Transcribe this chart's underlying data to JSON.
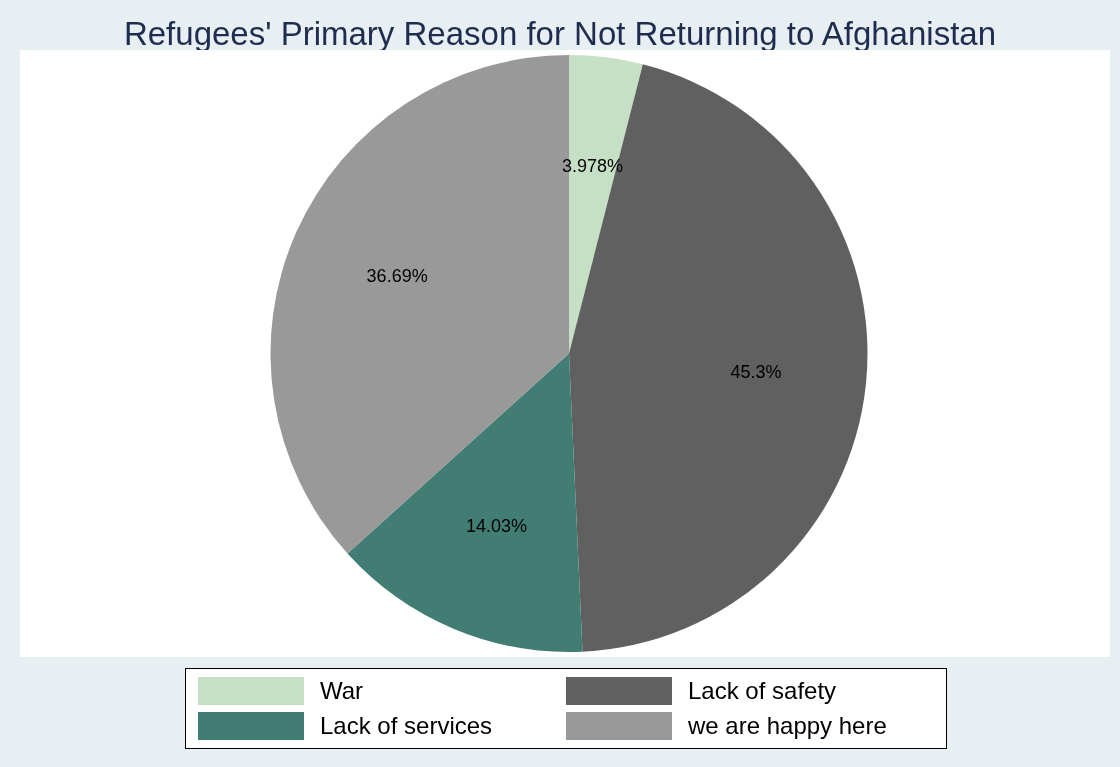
{
  "chart_data": {
    "type": "pie",
    "title": "Refugees' Primary Reason for Not Returning to Afghanistan",
    "categories": [
      "War",
      "Lack of safety",
      "Lack of services",
      "we are happy here"
    ],
    "values": [
      3.978,
      45.3,
      14.03,
      36.69
    ],
    "value_labels": [
      "3.978%",
      "45.3%",
      "14.03%",
      "36.69%"
    ],
    "colors": [
      "#c6e0c6",
      "#606060",
      "#427d74",
      "#999999"
    ],
    "legend": "bottom"
  }
}
